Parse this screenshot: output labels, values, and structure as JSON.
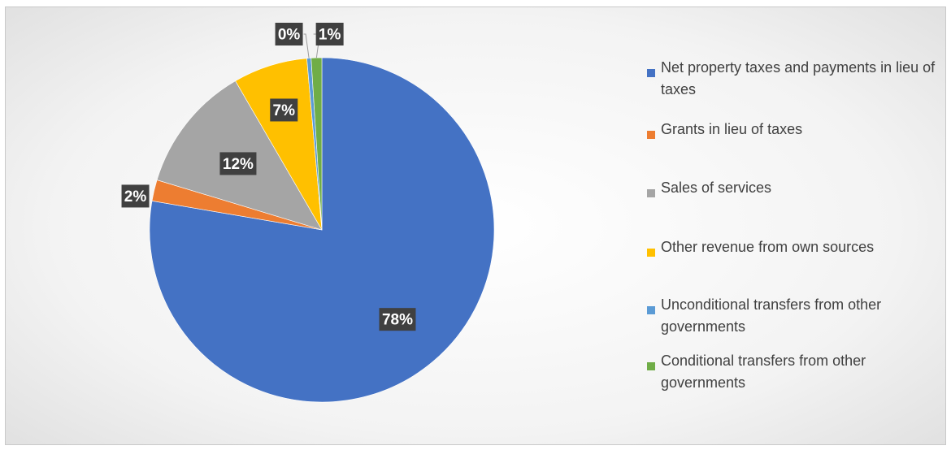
{
  "chart_data": {
    "type": "pie",
    "title": "",
    "categories": [
      "Net property taxes and payments in lieu of taxes",
      "Grants in lieu of taxes",
      "Sales of services",
      "Other revenue from own sources",
      "Unconditional transfers from other governments",
      "Conditional transfers from other governments"
    ],
    "values": [
      78,
      2,
      12,
      7,
      0,
      1
    ],
    "data_labels": [
      "78%",
      "2%",
      "12%",
      "7%",
      "0%",
      "1%"
    ],
    "colors": [
      "#4472C4",
      "#ED7D31",
      "#A5A5A5",
      "#FFC000",
      "#5B9BD5",
      "#70AD47"
    ],
    "legend_position": "right"
  }
}
